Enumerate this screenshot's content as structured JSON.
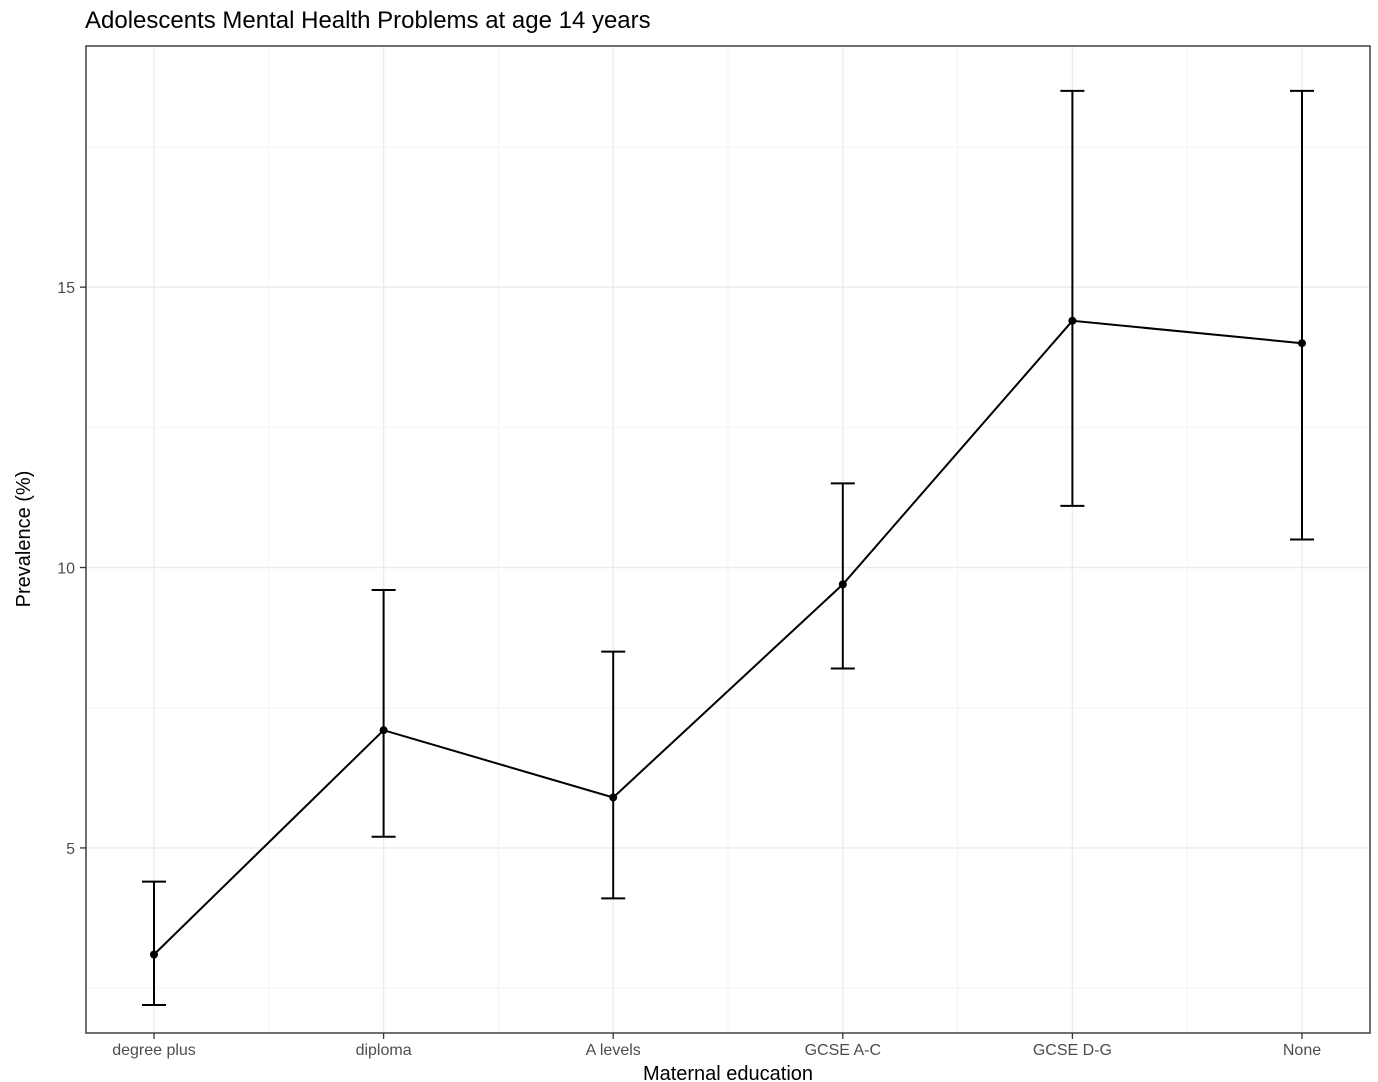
{
  "chart_data": {
    "type": "line",
    "title": "Adolescents Mental Health Problems at age 14 years",
    "xlabel": "Maternal education",
    "ylabel": "Prevalence (%)",
    "categories": [
      "degree plus",
      "diploma",
      "A levels",
      "GCSE A-C",
      "GCSE D-G",
      "None"
    ],
    "series": [
      {
        "values": [
          3.1,
          7.1,
          5.9,
          9.7,
          14.4,
          14.0
        ],
        "error_low": [
          2.2,
          5.2,
          4.1,
          8.2,
          11.1,
          10.5
        ],
        "error_high": [
          4.4,
          9.6,
          8.5,
          11.5,
          18.5,
          18.5
        ]
      }
    ],
    "yticks": [
      5,
      10,
      15
    ],
    "ylim": [
      1.7,
      19.3
    ],
    "grid": true,
    "legend": "none",
    "colors": {
      "line": "#000000",
      "grid": "#ebebeb",
      "border": "#333333"
    }
  }
}
